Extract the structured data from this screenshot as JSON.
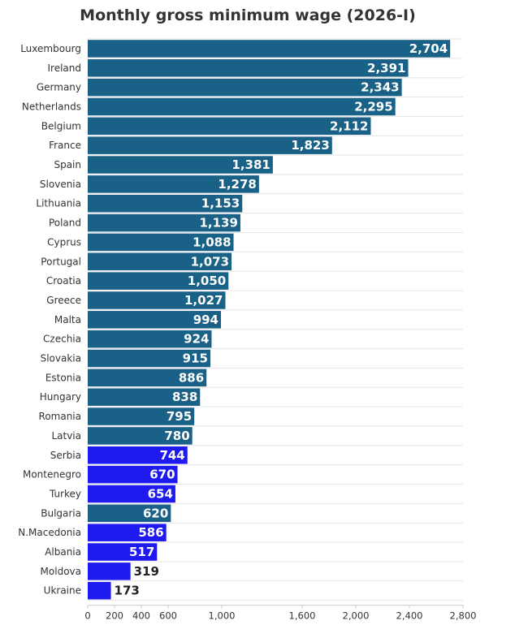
{
  "chart_data": {
    "type": "bar",
    "orientation": "horizontal",
    "title": "Monthly gross minimum wage (2026-I)",
    "xlabel": "",
    "ylabel": "",
    "xlim": [
      0,
      2800
    ],
    "x_ticks": [
      "0",
      "200",
      "400",
      "600",
      "1,000",
      "1,600",
      "2,000",
      "2,400",
      "2,800"
    ],
    "grid": "horizontal lines between rows",
    "colors": {
      "eu": "#1a6188",
      "non_eu": "#1f1aef"
    },
    "categories": [
      "Luxembourg",
      "Ireland",
      "Germany",
      "Netherlands",
      "Belgium",
      "France",
      "Spain",
      "Slovenia",
      "Lithuania",
      "Poland",
      "Cyprus",
      "Portugal",
      "Croatia",
      "Greece",
      "Malta",
      "Czechia",
      "Slovakia",
      "Estonia",
      "Hungary",
      "Romania",
      "Latvia",
      "Serbia",
      "Montenegro",
      "Turkey",
      "Bulgaria",
      "N.Macedonia",
      "Albania",
      "Moldova",
      "Ukraine"
    ],
    "values": [
      2704,
      2391,
      2343,
      2295,
      2112,
      1823,
      1381,
      1278,
      1153,
      1139,
      1088,
      1073,
      1050,
      1027,
      994,
      924,
      915,
      886,
      838,
      795,
      780,
      744,
      670,
      654,
      620,
      586,
      517,
      319,
      173
    ],
    "value_labels": [
      "2,704",
      "2,391",
      "2,343",
      "2,295",
      "2,112",
      "1,823",
      "1,381",
      "1,278",
      "1,153",
      "1,139",
      "1,088",
      "1,073",
      "1,050",
      "1,027",
      "994",
      "924",
      "915",
      "886",
      "838",
      "795",
      "780",
      "744",
      "670",
      "654",
      "620",
      "586",
      "517",
      "319",
      "173"
    ],
    "bar_color_group": [
      "eu",
      "eu",
      "eu",
      "eu",
      "eu",
      "eu",
      "eu",
      "eu",
      "eu",
      "eu",
      "eu",
      "eu",
      "eu",
      "eu",
      "eu",
      "eu",
      "eu",
      "eu",
      "eu",
      "eu",
      "eu",
      "non_eu",
      "non_eu",
      "non_eu",
      "eu",
      "non_eu",
      "non_eu",
      "non_eu",
      "non_eu"
    ]
  }
}
